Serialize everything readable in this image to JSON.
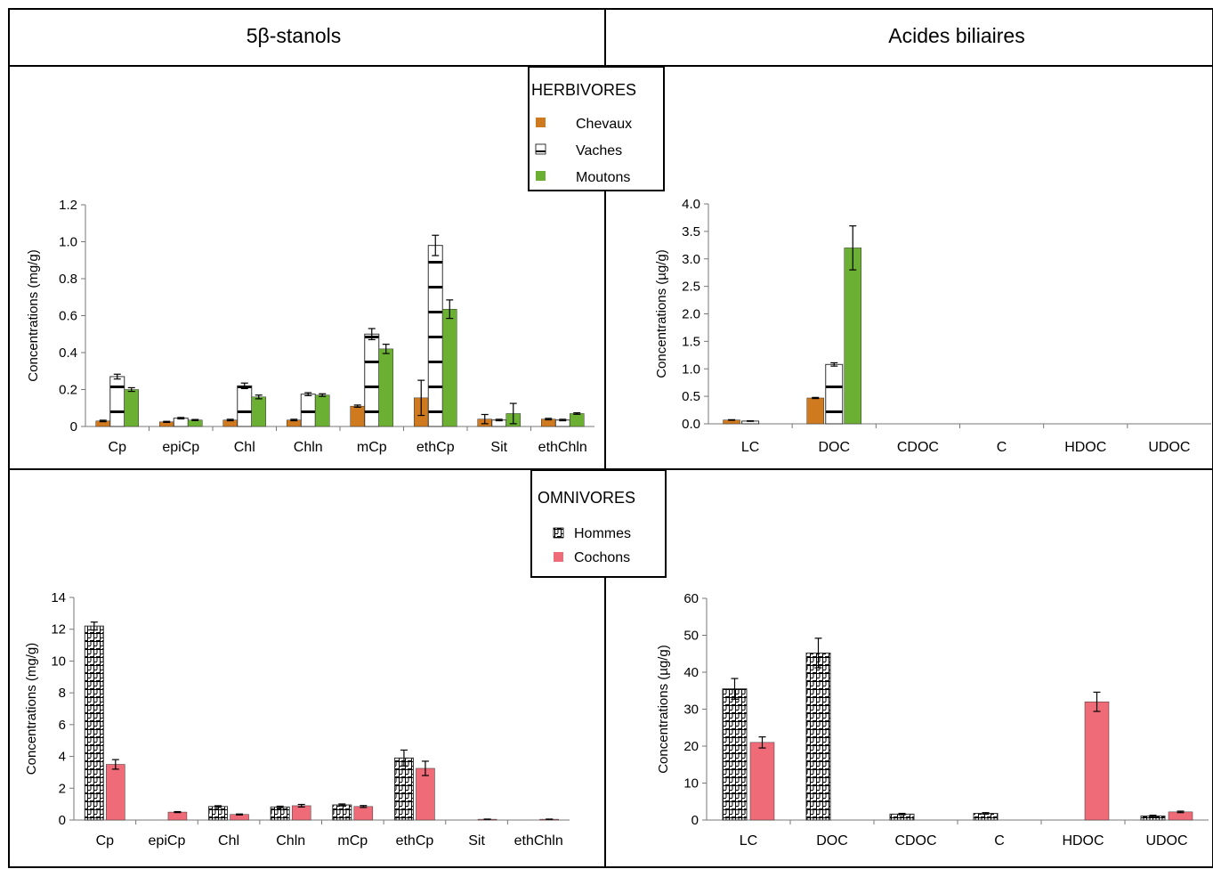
{
  "headers": {
    "left": "5β-stanols",
    "right": "Acides biliaires"
  },
  "legend_herbivores": {
    "title": "HERBIVORES",
    "items": [
      {
        "label": "Chevaux",
        "fill": "#d07a1f"
      },
      {
        "label": "Vaches",
        "fill": "pattern-hlines"
      },
      {
        "label": "Moutons",
        "fill": "#6cb033"
      }
    ]
  },
  "legend_omnivores": {
    "title": "OMNIVORES",
    "items": [
      {
        "label": "Hommes",
        "fill": "pattern-grid"
      },
      {
        "label": "Cochons",
        "fill": "#ef6b78"
      }
    ]
  },
  "colors": {
    "chevaux": "#d07a1f",
    "moutons": "#6cb033",
    "cochons": "#ef6b78"
  },
  "chart_data": [
    {
      "id": "herb_stanols",
      "type": "bar",
      "ylabel": "Concentrations (mg/g)",
      "ylim": [
        0,
        1.2
      ],
      "yticks": [
        "0",
        "0.2",
        "0.4",
        "0.6",
        "0.8",
        "1.0",
        "1.2"
      ],
      "categories": [
        "Cp",
        "epiCp",
        "Chl",
        "Chln",
        "mCp",
        "ethCp",
        "Sit",
        "ethChln"
      ],
      "series": [
        {
          "name": "Chevaux",
          "fill": "chevaux",
          "values": [
            0.03,
            0.025,
            0.035,
            0.035,
            0.11,
            0.155,
            0.04,
            0.04
          ],
          "errors": [
            0.004,
            0.003,
            0.004,
            0.004,
            0.006,
            0.095,
            0.025,
            0.004
          ]
        },
        {
          "name": "Vaches",
          "fill": "pattern-hlines",
          "values": [
            0.27,
            0.045,
            0.22,
            0.175,
            0.5,
            0.98,
            0.035,
            0.035
          ],
          "errors": [
            0.013,
            0.004,
            0.015,
            0.008,
            0.03,
            0.055,
            0.004,
            0.004
          ]
        },
        {
          "name": "Moutons",
          "fill": "moutons",
          "values": [
            0.2,
            0.035,
            0.16,
            0.17,
            0.42,
            0.635,
            0.07,
            0.07
          ],
          "errors": [
            0.01,
            0.003,
            0.01,
            0.007,
            0.025,
            0.05,
            0.055,
            0.004
          ]
        }
      ]
    },
    {
      "id": "herb_bile",
      "type": "bar",
      "ylabel": "Concentrations (µg/g)",
      "ylim": [
        0,
        4.0
      ],
      "yticks": [
        "0.0",
        "0.5",
        "1.0",
        "1.5",
        "2.0",
        "2.5",
        "3.0",
        "3.5",
        "4.0"
      ],
      "categories": [
        "LC",
        "DOC",
        "CDOC",
        "C",
        "HDOC",
        "UDOC"
      ],
      "series": [
        {
          "name": "Chevaux",
          "fill": "chevaux",
          "values": [
            0.07,
            0.47,
            0,
            0,
            0,
            0
          ],
          "errors": [
            0.005,
            0.01,
            0,
            0,
            0,
            0
          ]
        },
        {
          "name": "Vaches",
          "fill": "pattern-hlines",
          "values": [
            0.05,
            1.08,
            0,
            0,
            0,
            0
          ],
          "errors": [
            0.005,
            0.03,
            0,
            0,
            0,
            0
          ]
        },
        {
          "name": "Moutons",
          "fill": "moutons",
          "values": [
            0,
            3.2,
            0,
            0,
            0,
            0
          ],
          "errors": [
            0,
            0.4,
            0,
            0,
            0,
            0
          ]
        }
      ]
    },
    {
      "id": "omni_stanols",
      "type": "bar",
      "ylabel": "Concentrations (mg/g)",
      "ylim": [
        0,
        14
      ],
      "yticks": [
        "0",
        "2",
        "4",
        "6",
        "8",
        "10",
        "12",
        "14"
      ],
      "categories": [
        "Cp",
        "epiCp",
        "Chl",
        "Chln",
        "mCp",
        "ethCp",
        "Sit",
        "ethChln"
      ],
      "series": [
        {
          "name": "Hommes",
          "fill": "pattern-grid",
          "values": [
            12.2,
            0,
            0.85,
            0.82,
            0.95,
            3.9,
            0,
            0
          ],
          "errors": [
            0.25,
            0,
            0.05,
            0.05,
            0.06,
            0.5,
            0,
            0
          ]
        },
        {
          "name": "Cochons",
          "fill": "cochons",
          "values": [
            3.5,
            0.5,
            0.35,
            0.9,
            0.85,
            3.25,
            0.05,
            0.05
          ],
          "errors": [
            0.3,
            0.03,
            0.03,
            0.08,
            0.06,
            0.45,
            0.01,
            0.01
          ]
        }
      ]
    },
    {
      "id": "omni_bile",
      "type": "bar",
      "ylabel": "Concentrations (µg/g)",
      "ylim": [
        0,
        60
      ],
      "yticks": [
        "0",
        "10",
        "20",
        "30",
        "40",
        "50",
        "60"
      ],
      "categories": [
        "LC",
        "DOC",
        "CDOC",
        "C",
        "HDOC",
        "UDOC"
      ],
      "series": [
        {
          "name": "Hommes",
          "fill": "pattern-grid",
          "values": [
            35.5,
            45.2,
            1.6,
            1.8,
            0,
            1.1
          ],
          "errors": [
            2.8,
            4,
            0.2,
            0.2,
            0,
            0.2
          ]
        },
        {
          "name": "Cochons",
          "fill": "cochons",
          "values": [
            21,
            0,
            0,
            0,
            32,
            2.2
          ],
          "errors": [
            1.5,
            0,
            0,
            0,
            2.6,
            0.2
          ]
        }
      ]
    }
  ]
}
